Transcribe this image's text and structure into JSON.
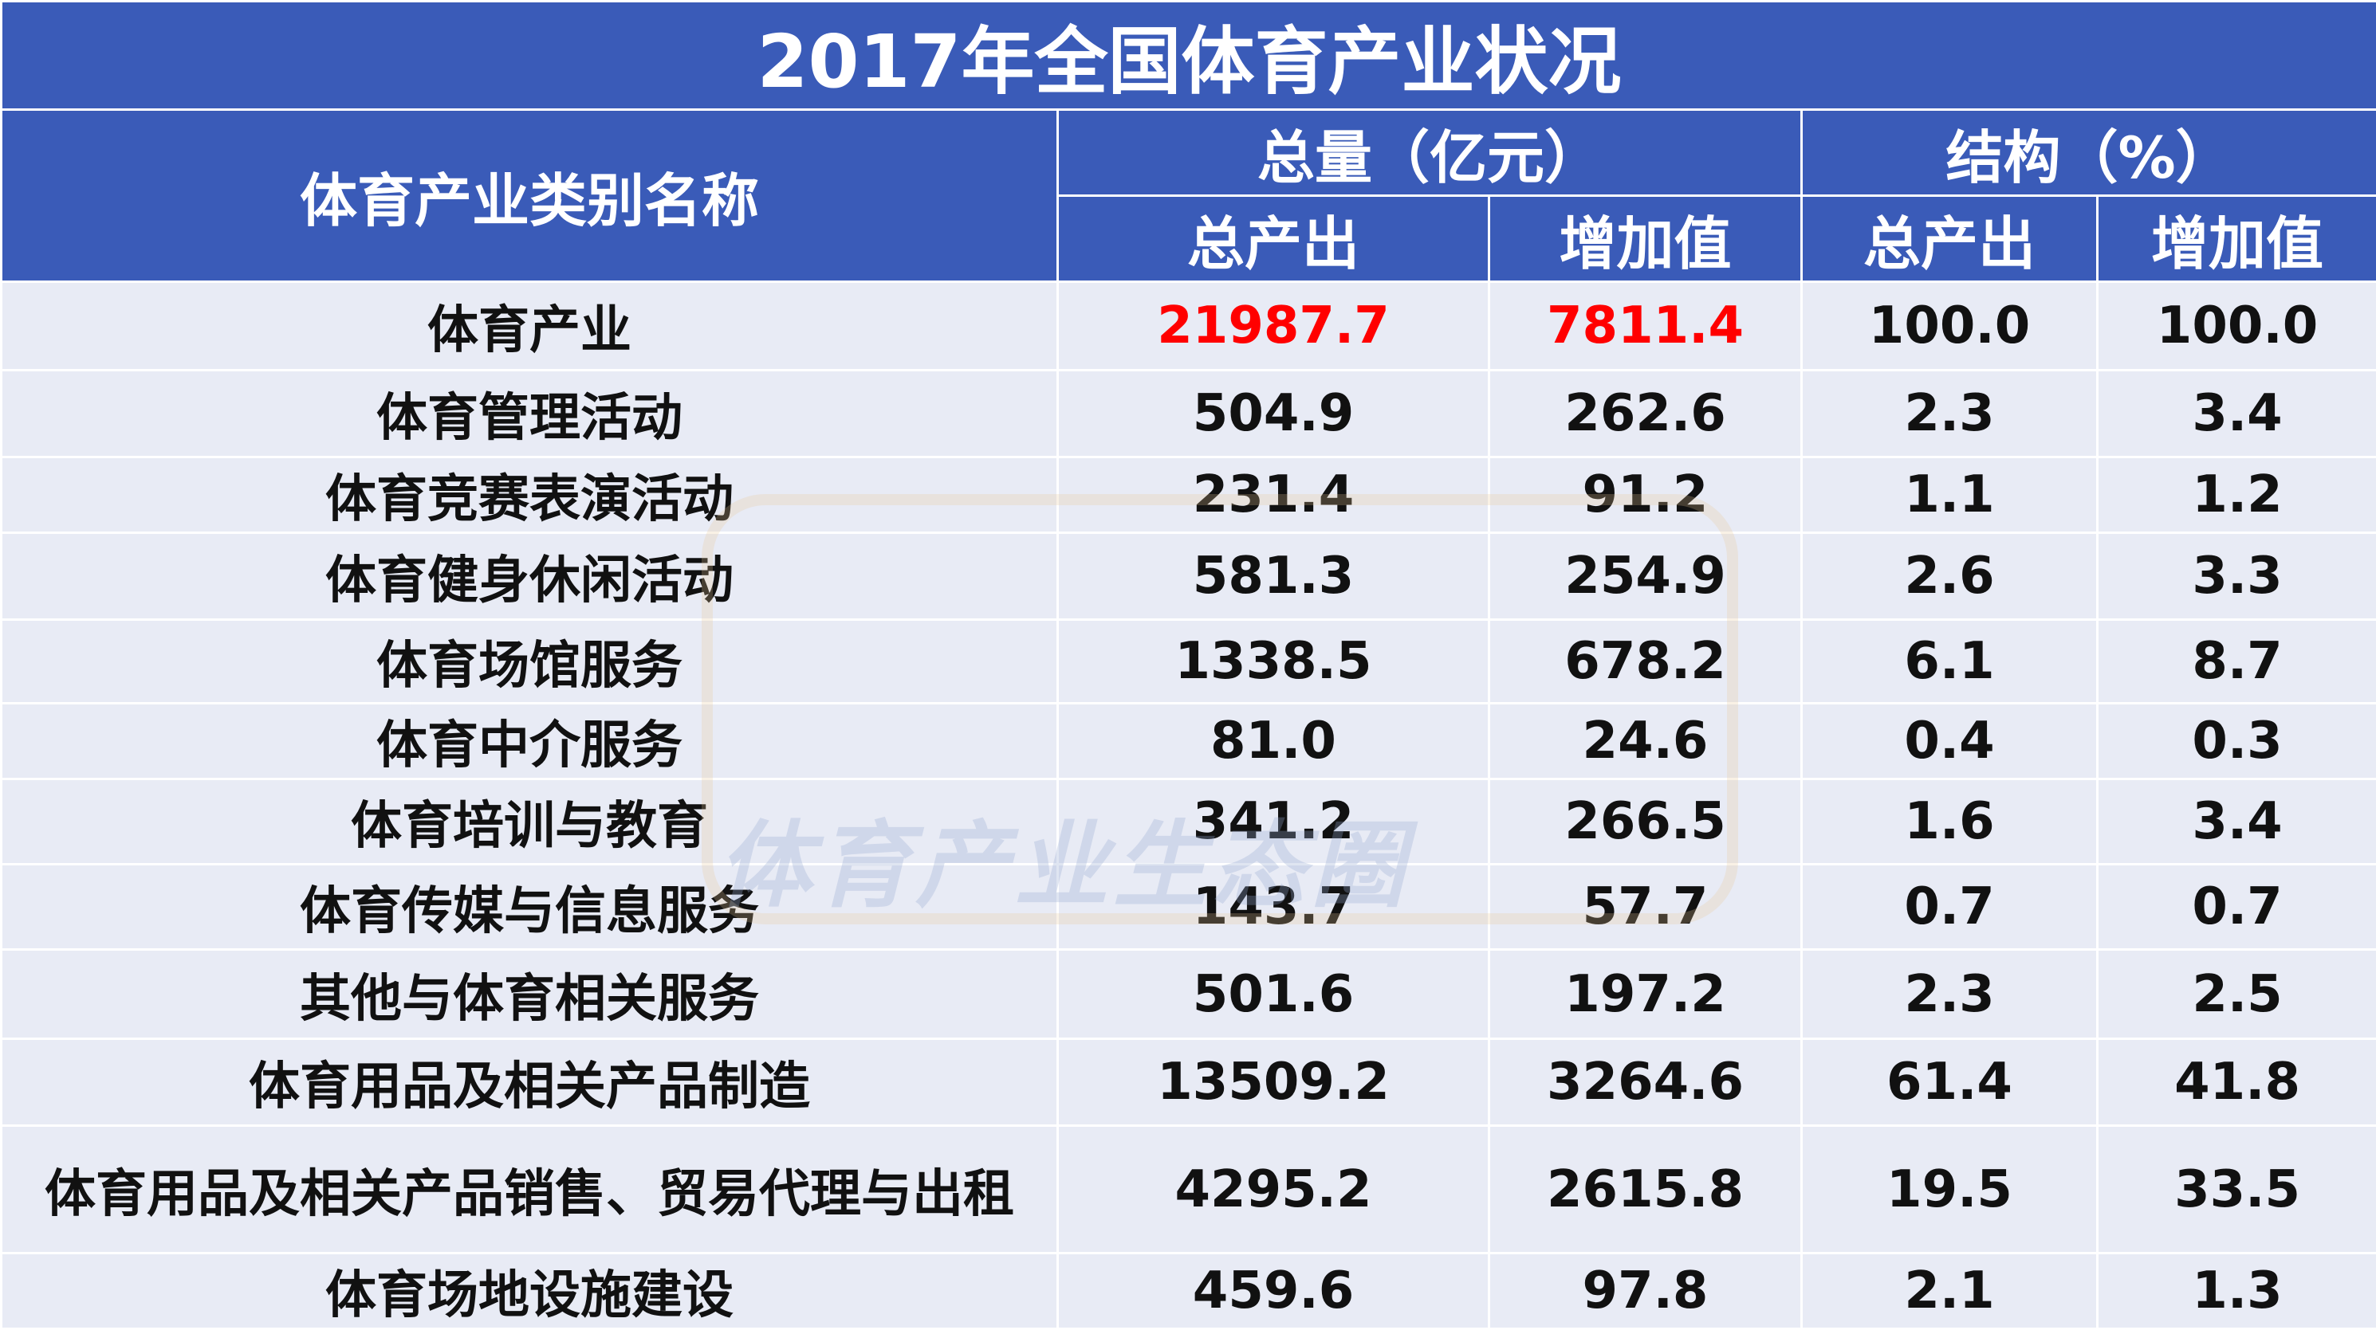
{
  "title": "2017年全国体育产业状况",
  "table": {
    "header": {
      "name": "体育产业类别名称",
      "group1": "总量（亿元）",
      "group2": "结构（%）",
      "sub": [
        "总产出",
        "增加值",
        "总产出",
        "增加值"
      ]
    },
    "rows": [
      [
        "体育产业",
        "21987.7",
        "7811.4",
        "100.0",
        "100.0"
      ],
      [
        "体育管理活动",
        "504.9",
        "262.6",
        "2.3",
        "3.4"
      ],
      [
        "体育竞赛表演活动",
        "231.4",
        "91.2",
        "1.1",
        "1.2"
      ],
      [
        "体育健身休闲活动",
        "581.3",
        "254.9",
        "2.6",
        "3.3"
      ],
      [
        "体育场馆服务",
        "1338.5",
        "678.2",
        "6.1",
        "8.7"
      ],
      [
        "体育中介服务",
        "81.0",
        "24.6",
        "0.4",
        "0.3"
      ],
      [
        "体育培训与教育",
        "341.2",
        "266.5",
        "1.6",
        "3.4"
      ],
      [
        "体育传媒与信息服务",
        "143.7",
        "57.7",
        "0.7",
        "0.7"
      ],
      [
        "其他与体育相关服务",
        "501.6",
        "197.2",
        "2.3",
        "2.5"
      ],
      [
        "体育用品及相关产品制造",
        "13509.2",
        "3264.6",
        "61.4",
        "41.8"
      ],
      [
        "体育用品及相关产品销售、贸易代理与出租",
        "4295.2",
        "2615.8",
        "19.5",
        "33.5"
      ],
      [
        "体育场地设施建设",
        "459.6",
        "97.8",
        "2.1",
        "1.3"
      ]
    ]
  },
  "watermark": "体育产业生态圈"
}
